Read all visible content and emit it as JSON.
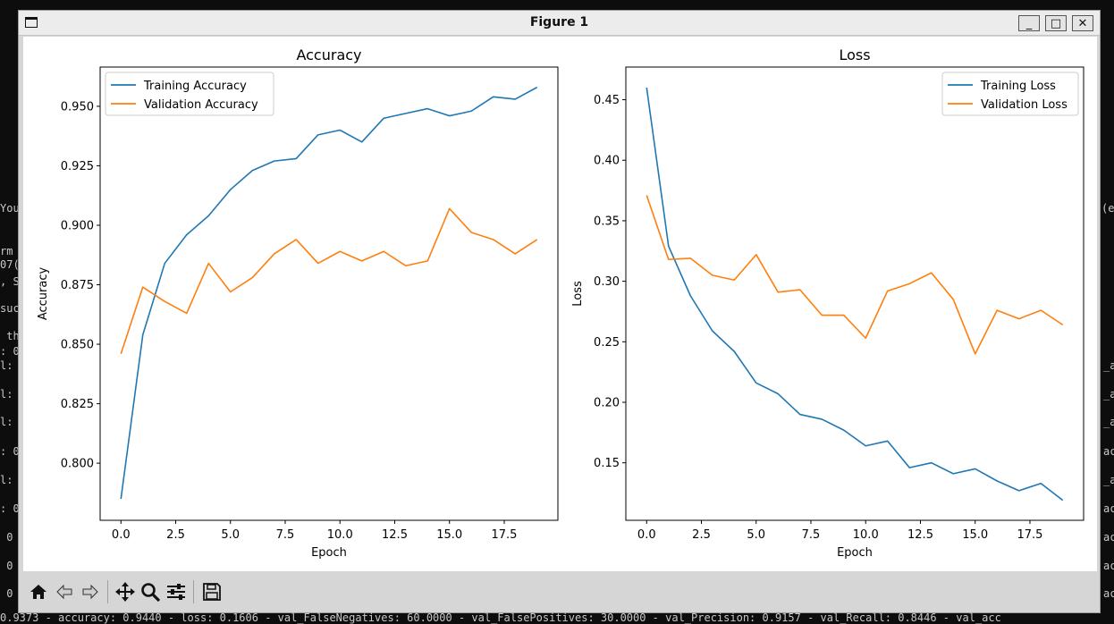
{
  "window": {
    "title": "Figure 1",
    "minimize_label": "_",
    "maximize_label": "□",
    "close_label": "✕"
  },
  "terminal": {
    "left_fragments": [
      "Your",
      "rm",
      "07(",
      ", S",
      "suc",
      " th",
      ": 0",
      "l:",
      "l:",
      "l:",
      ": 0",
      "l:",
      ": 0",
      " 0",
      " 0",
      " 0"
    ],
    "right_fragments": [
      "e`",
      "(e`",
      "_a",
      "_a",
      "_a",
      "ac",
      "_a",
      "ac",
      "ac",
      "ac",
      "ac"
    ],
    "bottom_line": "0.9373 - accuracy: 0.9440 - loss: 0.1606 - val_FalseNegatives: 60.0000 - val_FalsePositives: 30.0000 - val_Precision: 0.9157 - val_Recall: 0.8446 - val_acc"
  },
  "toolbar": {
    "icons": [
      "home-icon",
      "back-icon",
      "forward-icon",
      "pan-icon",
      "zoom-icon",
      "configure-subplots-icon",
      "save-icon"
    ]
  },
  "chart_data": [
    {
      "type": "line",
      "title": "Accuracy",
      "xlabel": "Epoch",
      "ylabel": "Accuracy",
      "x": [
        0,
        1,
        2,
        3,
        4,
        5,
        6,
        7,
        8,
        9,
        10,
        11,
        12,
        13,
        14,
        15,
        16,
        17,
        18,
        19
      ],
      "xlim": [
        -0.95,
        19.95
      ],
      "ylim": [
        0.776,
        0.9665
      ],
      "xticks": [
        0.0,
        2.5,
        5.0,
        7.5,
        10.0,
        12.5,
        15.0,
        17.5
      ],
      "xtick_labels": [
        "0.0",
        "2.5",
        "5.0",
        "7.5",
        "10.0",
        "12.5",
        "15.0",
        "17.5"
      ],
      "yticks": [
        0.8,
        0.825,
        0.85,
        0.875,
        0.9,
        0.925,
        0.95
      ],
      "ytick_labels": [
        "0.800",
        "0.825",
        "0.850",
        "0.875",
        "0.900",
        "0.925",
        "0.950"
      ],
      "legend_position": "upper-left",
      "series": [
        {
          "name": "Training Accuracy",
          "color": "#1f77b4",
          "values": [
            0.785,
            0.854,
            0.884,
            0.896,
            0.904,
            0.915,
            0.923,
            0.927,
            0.928,
            0.938,
            0.94,
            0.935,
            0.945,
            0.947,
            0.949,
            0.946,
            0.948,
            0.954,
            0.953,
            0.958
          ]
        },
        {
          "name": "Validation Accuracy",
          "color": "#ff7f0e",
          "values": [
            0.846,
            0.874,
            0.868,
            0.863,
            0.884,
            0.872,
            0.878,
            0.888,
            0.894,
            0.884,
            0.889,
            0.885,
            0.889,
            0.883,
            0.885,
            0.907,
            0.897,
            0.894,
            0.888,
            0.894
          ]
        }
      ]
    },
    {
      "type": "line",
      "title": "Loss",
      "xlabel": "Epoch",
      "ylabel": "Loss",
      "x": [
        0,
        1,
        2,
        3,
        4,
        5,
        6,
        7,
        8,
        9,
        10,
        11,
        12,
        13,
        14,
        15,
        16,
        17,
        18,
        19
      ],
      "xlim": [
        -0.95,
        19.95
      ],
      "ylim": [
        0.1025,
        0.477
      ],
      "xticks": [
        0.0,
        2.5,
        5.0,
        7.5,
        10.0,
        12.5,
        15.0,
        17.5
      ],
      "xtick_labels": [
        "0.0",
        "2.5",
        "5.0",
        "7.5",
        "10.0",
        "12.5",
        "15.0",
        "17.5"
      ],
      "yticks": [
        0.15,
        0.2,
        0.25,
        0.3,
        0.35,
        0.4,
        0.45
      ],
      "ytick_labels": [
        "0.15",
        "0.20",
        "0.25",
        "0.30",
        "0.35",
        "0.40",
        "0.45"
      ],
      "legend_position": "upper-right",
      "series": [
        {
          "name": "Training Loss",
          "color": "#1f77b4",
          "values": [
            0.46,
            0.329,
            0.288,
            0.259,
            0.242,
            0.216,
            0.207,
            0.19,
            0.186,
            0.177,
            0.164,
            0.168,
            0.146,
            0.15,
            0.141,
            0.145,
            0.135,
            0.127,
            0.133,
            0.119
          ]
        },
        {
          "name": "Validation Loss",
          "color": "#ff7f0e",
          "values": [
            0.371,
            0.318,
            0.319,
            0.305,
            0.301,
            0.322,
            0.291,
            0.293,
            0.272,
            0.272,
            0.253,
            0.292,
            0.298,
            0.307,
            0.285,
            0.24,
            0.276,
            0.269,
            0.276,
            0.264
          ]
        }
      ]
    }
  ]
}
